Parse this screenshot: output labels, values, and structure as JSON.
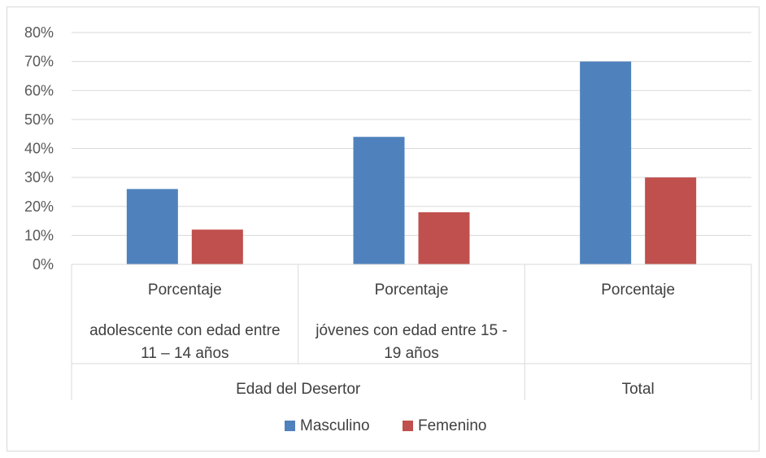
{
  "chart_data": {
    "type": "bar",
    "categories": [
      {
        "level1": "Porcentaje",
        "level2": [
          "adolescente con edad entre",
          "11 – 14 años"
        ],
        "group": "Edad del Desertor"
      },
      {
        "level1": "Porcentaje",
        "level2": [
          "jóvenes con edad entre 15 -",
          "19 años"
        ],
        "group": "Edad del Desertor"
      },
      {
        "level1": "Porcentaje",
        "level2": [],
        "group": "Total"
      }
    ],
    "groups": [
      "Edad del Desertor",
      "Total"
    ],
    "series": [
      {
        "name": "Masculino",
        "values": [
          26,
          44,
          70
        ],
        "color": "#4F81BD"
      },
      {
        "name": "Femenino",
        "values": [
          12,
          18,
          30
        ],
        "color": "#C0504D"
      }
    ],
    "ylim": [
      0,
      80
    ],
    "yticks": [
      "0%",
      "10%",
      "20%",
      "30%",
      "40%",
      "50%",
      "60%",
      "70%",
      "80%"
    ],
    "grid": true,
    "legend": "bottom"
  }
}
